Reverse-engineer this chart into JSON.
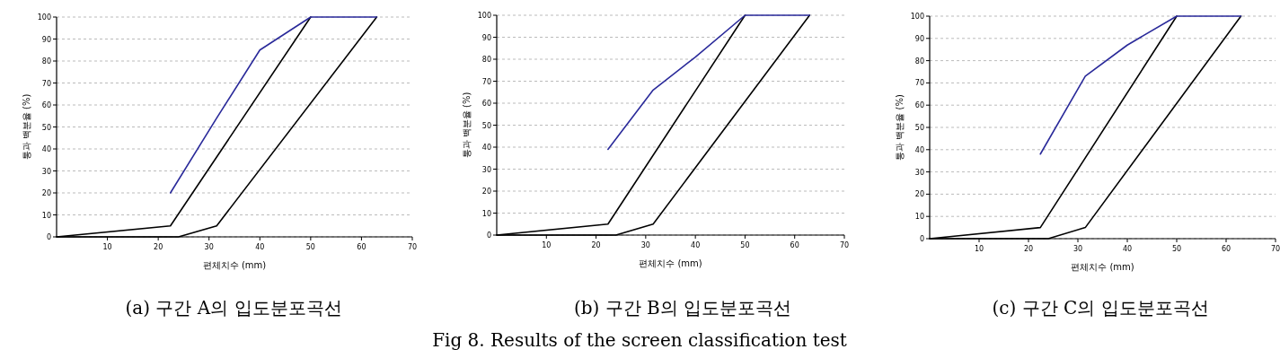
{
  "chart_data": [
    {
      "type": "line",
      "title": "(a) 구간 A의 입도분포곡선",
      "xlabel": "편체치수 (mm)",
      "ylabel": "통과 백분율 (%)",
      "xlim": [
        0,
        70
      ],
      "ylim": [
        0,
        100
      ],
      "xticks": [
        10,
        20,
        30,
        40,
        50,
        60,
        70
      ],
      "yticks": [
        0,
        10,
        20,
        30,
        40,
        50,
        60,
        70,
        80,
        90,
        100
      ],
      "grid": "y",
      "marker": "none",
      "line_style": "solid",
      "series": [
        {
          "color": "#000000",
          "x": [
            0,
            22.4,
            50
          ],
          "values": [
            0,
            5,
            100
          ]
        },
        {
          "color": "#000000",
          "x": [
            0,
            24,
            31.5,
            63
          ],
          "values": [
            0,
            0,
            5,
            100
          ]
        },
        {
          "color": "#2a2a9a",
          "x": [
            22.4,
            31.5,
            40,
            50,
            63
          ],
          "values": [
            20,
            54,
            85,
            100,
            100
          ]
        }
      ]
    },
    {
      "type": "line",
      "title": "(b) 구간 B의 입도분포곡선",
      "xlabel": "편체치수 (mm)",
      "ylabel": "통과 백분율 (%)",
      "xlim": [
        0,
        70
      ],
      "ylim": [
        0,
        100
      ],
      "xticks": [
        10,
        20,
        30,
        40,
        50,
        60,
        70
      ],
      "yticks": [
        0,
        10,
        20,
        30,
        40,
        50,
        60,
        70,
        80,
        90,
        100
      ],
      "grid": "y",
      "marker": "none",
      "line_style": "solid",
      "annotations": [
        "Fig 8. Results of the screen classification test"
      ],
      "series": [
        {
          "color": "#000000",
          "x": [
            0,
            22.4,
            50
          ],
          "values": [
            0,
            5,
            100
          ]
        },
        {
          "color": "#000000",
          "x": [
            0,
            24,
            31.5,
            63
          ],
          "values": [
            0,
            0,
            5,
            100
          ]
        },
        {
          "color": "#2a2a9a",
          "x": [
            22.4,
            31.5,
            40,
            50,
            63
          ],
          "values": [
            39,
            66,
            81,
            100,
            100
          ]
        }
      ]
    },
    {
      "type": "line",
      "title": "(c) 구간 C의 입도분포곡선",
      "xlabel": "편체치수 (mm)",
      "ylabel": "통과 백분율 (%)",
      "xlim": [
        0,
        70
      ],
      "ylim": [
        0,
        100
      ],
      "xticks": [
        10,
        20,
        30,
        40,
        50,
        60,
        70
      ],
      "yticks": [
        0,
        10,
        20,
        30,
        40,
        50,
        60,
        70,
        80,
        90,
        100
      ],
      "grid": "y",
      "marker": "none",
      "line_style": "solid",
      "series": [
        {
          "color": "#000000",
          "x": [
            0,
            22.4,
            50
          ],
          "values": [
            0,
            5,
            100
          ]
        },
        {
          "color": "#000000",
          "x": [
            0,
            24,
            31.5,
            63
          ],
          "values": [
            0,
            0,
            5,
            100
          ]
        },
        {
          "color": "#2a2a9a",
          "x": [
            22.4,
            31.5,
            40,
            50,
            63
          ],
          "values": [
            38,
            73,
            87,
            100,
            100
          ]
        }
      ]
    }
  ]
}
